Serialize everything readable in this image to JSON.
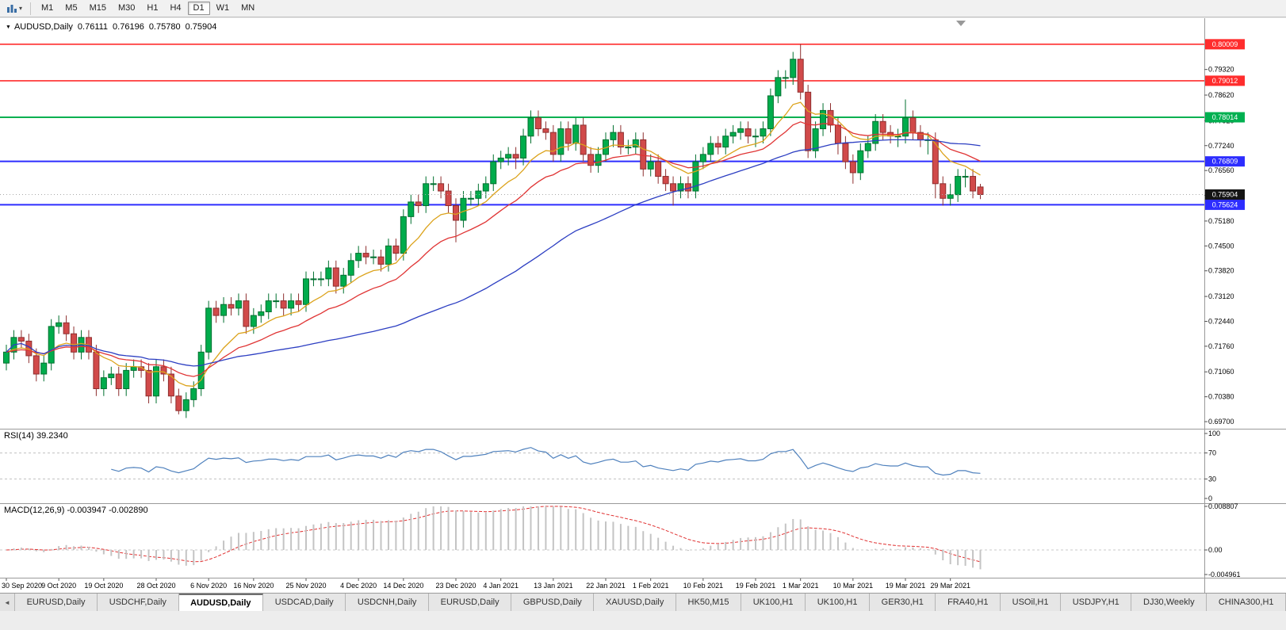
{
  "icons": {
    "charts_dropdown": "▾",
    "symbol_marker": "▼",
    "tab_scroll_left": "◄"
  },
  "toolbar": {
    "timeframes": [
      "M1",
      "M5",
      "M15",
      "M30",
      "H1",
      "H4",
      "D1",
      "W1",
      "MN"
    ],
    "active": "D1"
  },
  "symbol_info": {
    "symbol": "AUDUSD,Daily",
    "open": "0.76111",
    "high": "0.76196",
    "low": "0.75780",
    "close": "0.75904"
  },
  "chart_data": {
    "type": "candlestick",
    "symbol": "AUDUSD",
    "timeframe": "Daily",
    "price_axis": {
      "min": 0.6955,
      "max": 0.8059,
      "ticks": [
        0.7932,
        0.7862,
        0.7792,
        0.7724,
        0.7656,
        0.7588,
        0.7518,
        0.745,
        0.7382,
        0.7312,
        0.7244,
        0.7176,
        0.7106,
        0.7038,
        0.697
      ]
    },
    "candle_colors": {
      "up_fill": "#00ac4c",
      "up_stroke": "#00702f",
      "down_fill": "#d14a4a",
      "down_stroke": "#8e2f2f"
    },
    "hlines": [
      {
        "value": 0.80009,
        "color": "#ff2d2d",
        "width": 1.6
      },
      {
        "value": 0.79012,
        "color": "#ff2d2d",
        "width": 1.6
      },
      {
        "value": 0.78014,
        "color": "#00b050",
        "width": 2
      },
      {
        "value": 0.76809,
        "color": "#2d2dff",
        "width": 2
      },
      {
        "value": 0.75624,
        "color": "#2d2dff",
        "width": 2
      }
    ],
    "current_price": {
      "value": 0.75904,
      "line_color": "#aaaaaa",
      "badge_color": "#141414"
    },
    "moving_averages": [
      {
        "period": 10,
        "method": "ema",
        "color": "#dca31c"
      },
      {
        "period": 20,
        "method": "ema",
        "color": "#e03535"
      },
      {
        "period": 50,
        "method": "sma",
        "color": "#2c3ec2"
      }
    ],
    "indicators": [
      {
        "name": "RSI",
        "label": "RSI(14) 39.2340",
        "period": 14,
        "current": 39.234,
        "levels": [
          70,
          30
        ],
        "ticks": [
          100,
          70,
          30,
          0
        ],
        "range": [
          0,
          100
        ],
        "color": "#4f81bd"
      },
      {
        "name": "MACD",
        "label": "MACD(12,26,9) -0.003947 -0.002890",
        "fast": 12,
        "slow": 26,
        "signal_period": 9,
        "current_macd": -0.003947,
        "current_signal": -0.00289,
        "ticks": [
          0.008807,
          0,
          -0.004961
        ],
        "range": [
          -0.004961,
          0.008807
        ],
        "histogram_color": "#c4c4c4",
        "signal_color": "#e03030"
      }
    ],
    "x_labels": [
      {
        "label": "30 Sep 2020",
        "index": 0
      },
      {
        "label": "9 Oct 2020",
        "index": 7
      },
      {
        "label": "19 Oct 2020",
        "index": 13
      },
      {
        "label": "28 Oct 2020",
        "index": 20
      },
      {
        "label": "6 Nov 2020",
        "index": 27
      },
      {
        "label": "16 Nov 2020",
        "index": 33
      },
      {
        "label": "25 Nov 2020",
        "index": 40
      },
      {
        "label": "4 Dec 2020",
        "index": 47
      },
      {
        "label": "14 Dec 2020",
        "index": 53
      },
      {
        "label": "23 Dec 2020",
        "index": 60
      },
      {
        "label": "4 Jan 2021",
        "index": 66
      },
      {
        "label": "13 Jan 2021",
        "index": 73
      },
      {
        "label": "22 Jan 2021",
        "index": 80
      },
      {
        "label": "1 Feb 2021",
        "index": 86
      },
      {
        "label": "10 Feb 2021",
        "index": 93
      },
      {
        "label": "19 Feb 2021",
        "index": 100
      },
      {
        "label": "1 Mar 2021",
        "index": 106
      },
      {
        "label": "10 Mar 2021",
        "index": 113
      },
      {
        "label": "19 Mar 2021",
        "index": 120
      },
      {
        "label": "29 Mar 2021",
        "index": 126
      }
    ],
    "candles": [
      [
        0.713,
        0.718,
        0.711,
        0.716
      ],
      [
        0.716,
        0.722,
        0.714,
        0.72
      ],
      [
        0.72,
        0.722,
        0.717,
        0.719
      ],
      [
        0.719,
        0.721,
        0.713,
        0.715
      ],
      [
        0.715,
        0.717,
        0.708,
        0.71
      ],
      [
        0.71,
        0.715,
        0.708,
        0.713
      ],
      [
        0.713,
        0.725,
        0.711,
        0.723
      ],
      [
        0.723,
        0.726,
        0.721,
        0.724
      ],
      [
        0.724,
        0.726,
        0.719,
        0.721
      ],
      [
        0.721,
        0.723,
        0.714,
        0.716
      ],
      [
        0.716,
        0.722,
        0.714,
        0.72
      ],
      [
        0.72,
        0.722,
        0.714,
        0.716
      ],
      [
        0.716,
        0.718,
        0.704,
        0.706
      ],
      [
        0.706,
        0.711,
        0.704,
        0.709
      ],
      [
        0.709,
        0.712,
        0.707,
        0.71
      ],
      [
        0.71,
        0.712,
        0.704,
        0.706
      ],
      [
        0.706,
        0.713,
        0.704,
        0.711
      ],
      [
        0.711,
        0.714,
        0.709,
        0.712
      ],
      [
        0.712,
        0.714,
        0.709,
        0.711
      ],
      [
        0.711,
        0.713,
        0.702,
        0.704
      ],
      [
        0.704,
        0.714,
        0.702,
        0.712
      ],
      [
        0.712,
        0.714,
        0.708,
        0.71
      ],
      [
        0.71,
        0.712,
        0.702,
        0.704
      ],
      [
        0.704,
        0.706,
        0.699,
        0.7
      ],
      [
        0.7,
        0.705,
        0.698,
        0.703
      ],
      [
        0.703,
        0.708,
        0.701,
        0.706
      ],
      [
        0.706,
        0.718,
        0.704,
        0.716
      ],
      [
        0.716,
        0.73,
        0.714,
        0.728
      ],
      [
        0.728,
        0.73,
        0.724,
        0.726
      ],
      [
        0.726,
        0.731,
        0.724,
        0.729
      ],
      [
        0.729,
        0.731,
        0.726,
        0.728
      ],
      [
        0.728,
        0.732,
        0.726,
        0.73
      ],
      [
        0.73,
        0.732,
        0.721,
        0.723
      ],
      [
        0.723,
        0.728,
        0.721,
        0.726
      ],
      [
        0.726,
        0.729,
        0.724,
        0.727
      ],
      [
        0.727,
        0.732,
        0.725,
        0.73
      ],
      [
        0.73,
        0.732,
        0.728,
        0.73
      ],
      [
        0.73,
        0.732,
        0.726,
        0.728
      ],
      [
        0.728,
        0.732,
        0.726,
        0.73
      ],
      [
        0.73,
        0.732,
        0.727,
        0.729
      ],
      [
        0.729,
        0.738,
        0.727,
        0.736
      ],
      [
        0.736,
        0.738,
        0.734,
        0.736
      ],
      [
        0.736,
        0.738,
        0.734,
        0.736
      ],
      [
        0.736,
        0.741,
        0.734,
        0.739
      ],
      [
        0.739,
        0.741,
        0.732,
        0.734
      ],
      [
        0.734,
        0.739,
        0.732,
        0.737
      ],
      [
        0.737,
        0.743,
        0.735,
        0.741
      ],
      [
        0.741,
        0.745,
        0.739,
        0.743
      ],
      [
        0.743,
        0.745,
        0.74,
        0.742
      ],
      [
        0.742,
        0.744,
        0.74,
        0.742
      ],
      [
        0.742,
        0.744,
        0.738,
        0.74
      ],
      [
        0.74,
        0.747,
        0.738,
        0.745
      ],
      [
        0.745,
        0.747,
        0.741,
        0.743
      ],
      [
        0.743,
        0.755,
        0.741,
        0.753
      ],
      [
        0.753,
        0.759,
        0.751,
        0.757
      ],
      [
        0.757,
        0.759,
        0.754,
        0.756
      ],
      [
        0.756,
        0.764,
        0.754,
        0.762
      ],
      [
        0.762,
        0.764,
        0.76,
        0.762
      ],
      [
        0.762,
        0.764,
        0.758,
        0.76
      ],
      [
        0.76,
        0.762,
        0.754,
        0.756
      ],
      [
        0.756,
        0.758,
        0.746,
        0.752
      ],
      [
        0.752,
        0.76,
        0.75,
        0.758
      ],
      [
        0.758,
        0.76,
        0.756,
        0.758
      ],
      [
        0.758,
        0.762,
        0.756,
        0.76
      ],
      [
        0.76,
        0.764,
        0.758,
        0.762
      ],
      [
        0.762,
        0.77,
        0.76,
        0.768
      ],
      [
        0.768,
        0.771,
        0.766,
        0.769
      ],
      [
        0.769,
        0.772,
        0.767,
        0.77
      ],
      [
        0.77,
        0.772,
        0.766,
        0.769
      ],
      [
        0.769,
        0.777,
        0.767,
        0.775
      ],
      [
        0.775,
        0.782,
        0.773,
        0.78
      ],
      [
        0.78,
        0.782,
        0.775,
        0.777
      ],
      [
        0.777,
        0.779,
        0.774,
        0.776
      ],
      [
        0.776,
        0.778,
        0.768,
        0.77
      ],
      [
        0.77,
        0.779,
        0.768,
        0.777
      ],
      [
        0.777,
        0.779,
        0.771,
        0.773
      ],
      [
        0.773,
        0.78,
        0.771,
        0.778
      ],
      [
        0.778,
        0.78,
        0.768,
        0.77
      ],
      [
        0.77,
        0.772,
        0.765,
        0.767
      ],
      [
        0.767,
        0.772,
        0.765,
        0.77
      ],
      [
        0.77,
        0.776,
        0.768,
        0.774
      ],
      [
        0.774,
        0.778,
        0.772,
        0.776
      ],
      [
        0.776,
        0.778,
        0.77,
        0.772
      ],
      [
        0.772,
        0.774,
        0.77,
        0.772
      ],
      [
        0.772,
        0.776,
        0.77,
        0.774
      ],
      [
        0.774,
        0.776,
        0.764,
        0.766
      ],
      [
        0.766,
        0.77,
        0.764,
        0.768
      ],
      [
        0.768,
        0.77,
        0.762,
        0.764
      ],
      [
        0.764,
        0.766,
        0.76,
        0.762
      ],
      [
        0.762,
        0.764,
        0.756,
        0.76
      ],
      [
        0.76,
        0.764,
        0.758,
        0.762
      ],
      [
        0.762,
        0.764,
        0.758,
        0.76
      ],
      [
        0.76,
        0.77,
        0.758,
        0.768
      ],
      [
        0.768,
        0.772,
        0.766,
        0.77
      ],
      [
        0.77,
        0.775,
        0.768,
        0.773
      ],
      [
        0.773,
        0.775,
        0.77,
        0.772
      ],
      [
        0.772,
        0.777,
        0.77,
        0.775
      ],
      [
        0.775,
        0.778,
        0.773,
        0.776
      ],
      [
        0.776,
        0.779,
        0.774,
        0.777
      ],
      [
        0.777,
        0.779,
        0.773,
        0.775
      ],
      [
        0.775,
        0.777,
        0.772,
        0.775
      ],
      [
        0.775,
        0.779,
        0.773,
        0.777
      ],
      [
        0.777,
        0.788,
        0.775,
        0.786
      ],
      [
        0.786,
        0.793,
        0.784,
        0.791
      ],
      [
        0.791,
        0.793,
        0.788,
        0.791
      ],
      [
        0.791,
        0.798,
        0.789,
        0.796
      ],
      [
        0.796,
        0.8001,
        0.785,
        0.787
      ],
      [
        0.787,
        0.789,
        0.769,
        0.771
      ],
      [
        0.771,
        0.779,
        0.769,
        0.777
      ],
      [
        0.777,
        0.784,
        0.775,
        0.782
      ],
      [
        0.782,
        0.784,
        0.776,
        0.778
      ],
      [
        0.778,
        0.78,
        0.77,
        0.773
      ],
      [
        0.773,
        0.775,
        0.766,
        0.768
      ],
      [
        0.768,
        0.77,
        0.762,
        0.765
      ],
      [
        0.765,
        0.773,
        0.763,
        0.771
      ],
      [
        0.771,
        0.775,
        0.769,
        0.773
      ],
      [
        0.773,
        0.781,
        0.771,
        0.779
      ],
      [
        0.779,
        0.781,
        0.774,
        0.776
      ],
      [
        0.776,
        0.778,
        0.773,
        0.775
      ],
      [
        0.775,
        0.777,
        0.772,
        0.775
      ],
      [
        0.775,
        0.785,
        0.773,
        0.78
      ],
      [
        0.78,
        0.782,
        0.774,
        0.776
      ],
      [
        0.776,
        0.778,
        0.772,
        0.774
      ],
      [
        0.774,
        0.776,
        0.77,
        0.774
      ],
      [
        0.774,
        0.776,
        0.758,
        0.762
      ],
      [
        0.762,
        0.764,
        0.756,
        0.758
      ],
      [
        0.758,
        0.762,
        0.756,
        0.759
      ],
      [
        0.759,
        0.766,
        0.757,
        0.764
      ],
      [
        0.764,
        0.766,
        0.761,
        0.764
      ],
      [
        0.764,
        0.766,
        0.758,
        0.76
      ],
      [
        0.76111,
        0.76196,
        0.7578,
        0.75904
      ]
    ]
  },
  "tabs": {
    "active_index": 2,
    "items": [
      "EURUSD,Daily",
      "USDCHF,Daily",
      "AUDUSD,Daily",
      "USDCAD,Daily",
      "USDCNH,Daily",
      "EURUSD,Daily",
      "GBPUSD,Daily",
      "XAUUSD,Daily",
      "HK50,M15",
      "UK100,H1",
      "UK100,H1",
      "GER30,H1",
      "FRA40,H1",
      "USOil,H1",
      "USDJPY,H1",
      "DJ30,Weekly",
      "CHINA300,H1"
    ]
  }
}
